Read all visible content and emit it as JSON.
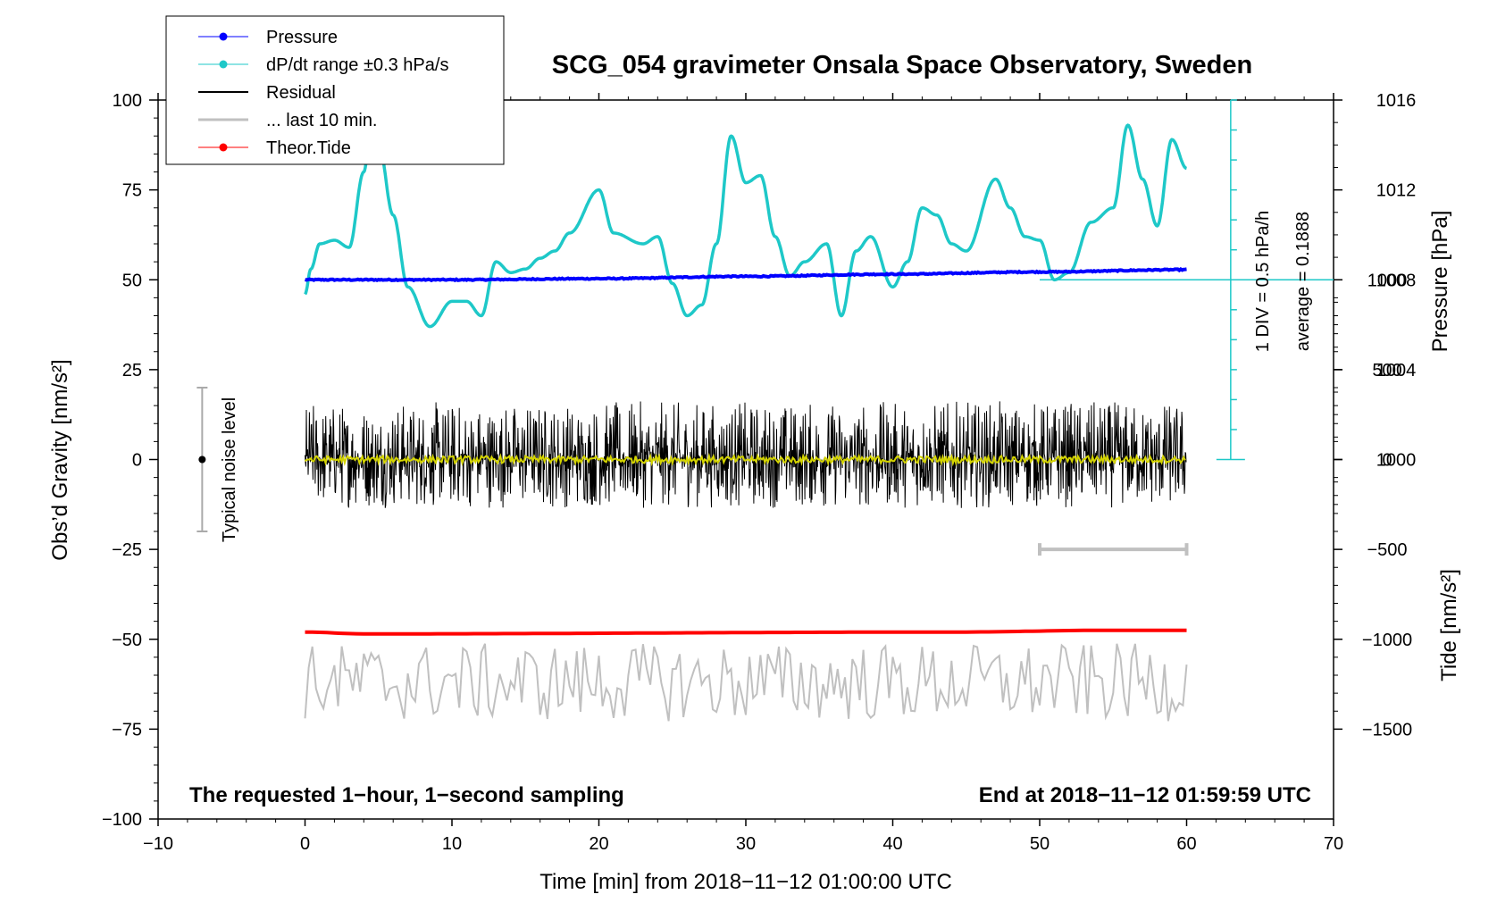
{
  "chart_data": {
    "type": "line",
    "title": "SCG_054 gravimeter Onsala Space Observatory, Sweden",
    "xlabel": "Time [min] from 2018−11−12 01:00:00 UTC",
    "ylabel_left": "Obs’d Gravity [nm/s²]",
    "ylabel_pressure": "Pressure [hPa]",
    "ylabel_tide": "Tide [nm/s²]",
    "xlim": [
      -10,
      70
    ],
    "ylim": [
      -100,
      100
    ],
    "x_ticks": [
      -10,
      0,
      10,
      20,
      30,
      40,
      50,
      60,
      70
    ],
    "x_tick_labels": [
      "−10",
      "0",
      "10",
      "20",
      "30",
      "40",
      "50",
      "60",
      "70"
    ],
    "y_ticks": [
      -100,
      -75,
      -50,
      -25,
      0,
      25,
      50,
      75,
      100
    ],
    "y_tick_labels": [
      "−100",
      "−75",
      "−50",
      "−25",
      "0",
      "25",
      "50",
      "75",
      "100"
    ],
    "pressure_axis": {
      "ticks_hpa": [
        1000,
        1004,
        1008,
        1012,
        1016
      ],
      "tick_labels": [
        "1000",
        "1004",
        "1008",
        "1012",
        "1016"
      ],
      "ref_hpa": 1008,
      "ref_gravity": 50,
      "gravity_per_hpa": 6.25
    },
    "tide_axis": {
      "ticks": [
        -1500,
        -1000,
        -500,
        0,
        500,
        1000
      ],
      "tick_labels": [
        "−1500",
        "−1000",
        "−500",
        "0",
        "500",
        "1000"
      ],
      "gravity_per_unit": 0.05
    },
    "dpdt_scale": {
      "label_div": "1 DIV = 0.5 hPa/h",
      "label_avg": "average = 0.1888",
      "top_gravity": 100,
      "bottom_gravity": 0,
      "ticks": 12
    },
    "noise_bar": {
      "label": "Typical noise level",
      "x": -7,
      "center": 0,
      "half_range": 20
    },
    "ten_min_bar": {
      "x_start": 50,
      "x_end": 60,
      "y": -25
    },
    "series": [
      {
        "name": "Pressure",
        "legend_label": "Pressure",
        "color": "#0000ff",
        "x": [
          0,
          10,
          20,
          30,
          40,
          50,
          60
        ],
        "values_hpa": [
          1008.0,
          1008.0,
          1008.05,
          1008.15,
          1008.25,
          1008.35,
          1008.45
        ]
      },
      {
        "name": "dP/dt range",
        "legend_label": "dP/dt range ±0.3 hPa/s",
        "color": "#1ec8c8",
        "x": [
          0,
          0.4,
          1,
          2,
          3,
          4,
          4.5,
          5,
          6,
          7,
          8.5,
          10,
          11,
          12,
          13,
          14,
          15,
          16,
          17,
          18,
          20,
          21,
          23,
          24,
          25,
          26,
          27,
          28,
          29,
          30,
          31,
          32,
          33,
          34,
          35.5,
          36.5,
          37.5,
          38.5,
          40,
          41,
          42,
          43,
          44,
          45,
          47,
          48,
          49,
          50,
          51,
          52,
          53.5,
          55,
          56,
          57,
          58,
          59,
          60
        ],
        "values": [
          46,
          53,
          60,
          61,
          59,
          80,
          92,
          88,
          68,
          48,
          37,
          44,
          44,
          40,
          55,
          52,
          53,
          56,
          58,
          63,
          75,
          63,
          60,
          62,
          49,
          40,
          43,
          60,
          90,
          77,
          79,
          62,
          51,
          55,
          60,
          40,
          58,
          62,
          48,
          55,
          70,
          68,
          60,
          58,
          78,
          70,
          62,
          61,
          50,
          52,
          66,
          70,
          93,
          78,
          65,
          89,
          81
        ]
      },
      {
        "name": "Residual",
        "legend_label": "Residual",
        "color": "#000000",
        "x_range": [
          0,
          60
        ],
        "band": [
          -15,
          18
        ]
      },
      {
        "name": "... last 10 min.",
        "legend_label": "... last 10 min.",
        "color": "#c0c0c0",
        "x_range": [
          0,
          60
        ],
        "center": -62,
        "band": [
          -76,
          -49
        ]
      },
      {
        "name": "Theor.Tide",
        "legend_label": "Theor.Tide",
        "color": "#ff0000",
        "x": [
          0,
          4,
          44,
          55,
          60
        ],
        "values_tide": [
          -960,
          -970,
          -960,
          -950,
          -950
        ]
      }
    ],
    "notes": {
      "left": "The requested 1−hour, 1−second sampling",
      "right": "End at 2018−11−12 01:59:59 UTC"
    },
    "legend_position": "top-left",
    "grid": false
  }
}
